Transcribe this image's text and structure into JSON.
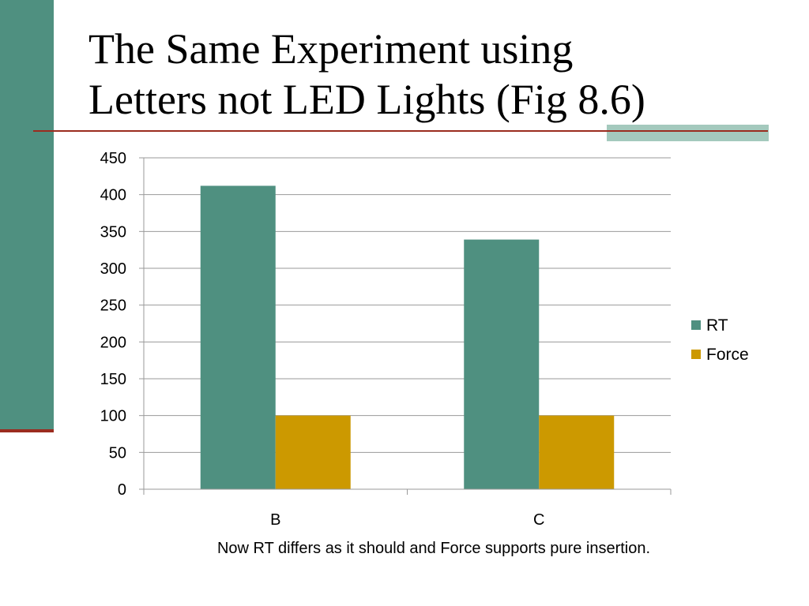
{
  "slide": {
    "title_line1": "The Same Experiment using",
    "title_line2": "Letters not LED Lights (Fig 8.6)",
    "caption": "Now RT differs as it should and Force supports pure insertion."
  },
  "colors": {
    "side_bar": "#4f9080",
    "rule": "#9b2c1f",
    "accent_bar": "#a4c9bd",
    "rt": "#4f9080",
    "force": "#cc9900",
    "grid": "#9a9a9a",
    "axis_text": "#000000"
  },
  "chart_data": {
    "type": "bar",
    "title": "",
    "xlabel": "",
    "ylabel": "",
    "categories": [
      "B",
      "C"
    ],
    "series": [
      {
        "name": "RT",
        "values": [
          412,
          339
        ],
        "color": "#4f9080"
      },
      {
        "name": "Force",
        "values": [
          100,
          100
        ],
        "color": "#cc9900"
      }
    ],
    "ylim": [
      0,
      450
    ],
    "yticks": [
      0,
      50,
      100,
      150,
      200,
      250,
      300,
      350,
      400,
      450
    ],
    "grid": true,
    "legend_position": "right"
  }
}
